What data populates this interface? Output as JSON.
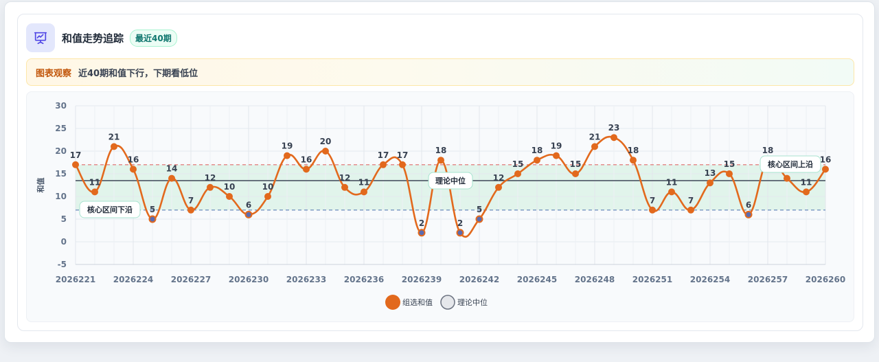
{
  "header": {
    "title": "和值走势追踪",
    "badge": "最近40期",
    "icon": "presentation-chart-icon"
  },
  "notice": {
    "label": "图表观察",
    "text": "近40期和值下行，下期看低位"
  },
  "colors": {
    "line": "#e2691d",
    "point": "#e2691d",
    "low_point": "#5b6bb0",
    "band": "#d9f2e6",
    "upper_line": "#e06a6a",
    "lower_line": "#5b7fb5",
    "median_line": "#4b5563"
  },
  "chart_data": {
    "type": "line",
    "ylabel": "和值",
    "ylim": [
      -5,
      30
    ],
    "yticks": [
      -5,
      0,
      5,
      10,
      15,
      20,
      25,
      30
    ],
    "x": [
      "2026221",
      "2026222",
      "2026223",
      "2026224",
      "2026225",
      "2026226",
      "2026227",
      "2026228",
      "2026229",
      "2026230",
      "2026231",
      "2026232",
      "2026233",
      "2026234",
      "2026235",
      "2026236",
      "2026237",
      "2026238",
      "2026239",
      "2026240",
      "2026241",
      "2026242",
      "2026243",
      "2026244",
      "2026245",
      "2026246",
      "2026247",
      "2026248",
      "2026249",
      "2026250",
      "2026251",
      "2026252",
      "2026253",
      "2026254",
      "2026255",
      "2026256",
      "2026257",
      "2026258",
      "2026259",
      "2026260"
    ],
    "xtick_labels": [
      "2026221",
      "2026224",
      "2026227",
      "2026230",
      "2026233",
      "2026236",
      "2026239",
      "2026242",
      "2026245",
      "2026248",
      "2026251",
      "2026254",
      "2026257",
      "2026260"
    ],
    "series": [
      {
        "name": "组选和值",
        "values": [
          17,
          11,
          21,
          16,
          5,
          14,
          7,
          12,
          10,
          6,
          10,
          19,
          16,
          20,
          12,
          11,
          17,
          17,
          2,
          18,
          2,
          5,
          12,
          15,
          18,
          19,
          15,
          21,
          23,
          18,
          7,
          11,
          7,
          13,
          15,
          6,
          18,
          14,
          11,
          16
        ]
      }
    ],
    "reference_lines": {
      "median": {
        "name": "理论中位",
        "value": 13.5
      },
      "upper": {
        "name": "核心区间上沿",
        "value": 17
      },
      "lower": {
        "name": "核心区间下沿",
        "value": 7
      }
    },
    "legend": {
      "position": "bottom-center",
      "items": [
        "组选和值",
        "理论中位"
      ]
    },
    "grid": true
  }
}
